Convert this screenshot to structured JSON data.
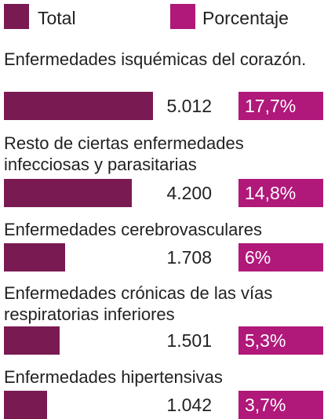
{
  "chart_data": {
    "type": "bar",
    "categories": [
      "Enfermedades isquémicas del corazón.",
      "Resto de ciertas enfermedades infecciosas y parasitarias",
      "Enfermedades cerebrovasculares",
      "Enfermedades crónicas de las vías respiratorias inferiores",
      "Enfermedades hipertensivas"
    ],
    "series": [
      {
        "name": "Total",
        "color": "#7a1a52",
        "values": [
          5012,
          4200,
          1708,
          1501,
          1042
        ],
        "value_labels": [
          "5.012",
          "4.200",
          "1.708",
          "1.501",
          "1.042"
        ]
      },
      {
        "name": "Porcentaje",
        "color": "#b0187a",
        "values": [
          17.7,
          14.8,
          6,
          5.3,
          3.7
        ],
        "value_labels": [
          "17,7%",
          "14,8%",
          "6%",
          "5,3%",
          "3,7%"
        ]
      }
    ]
  }
}
